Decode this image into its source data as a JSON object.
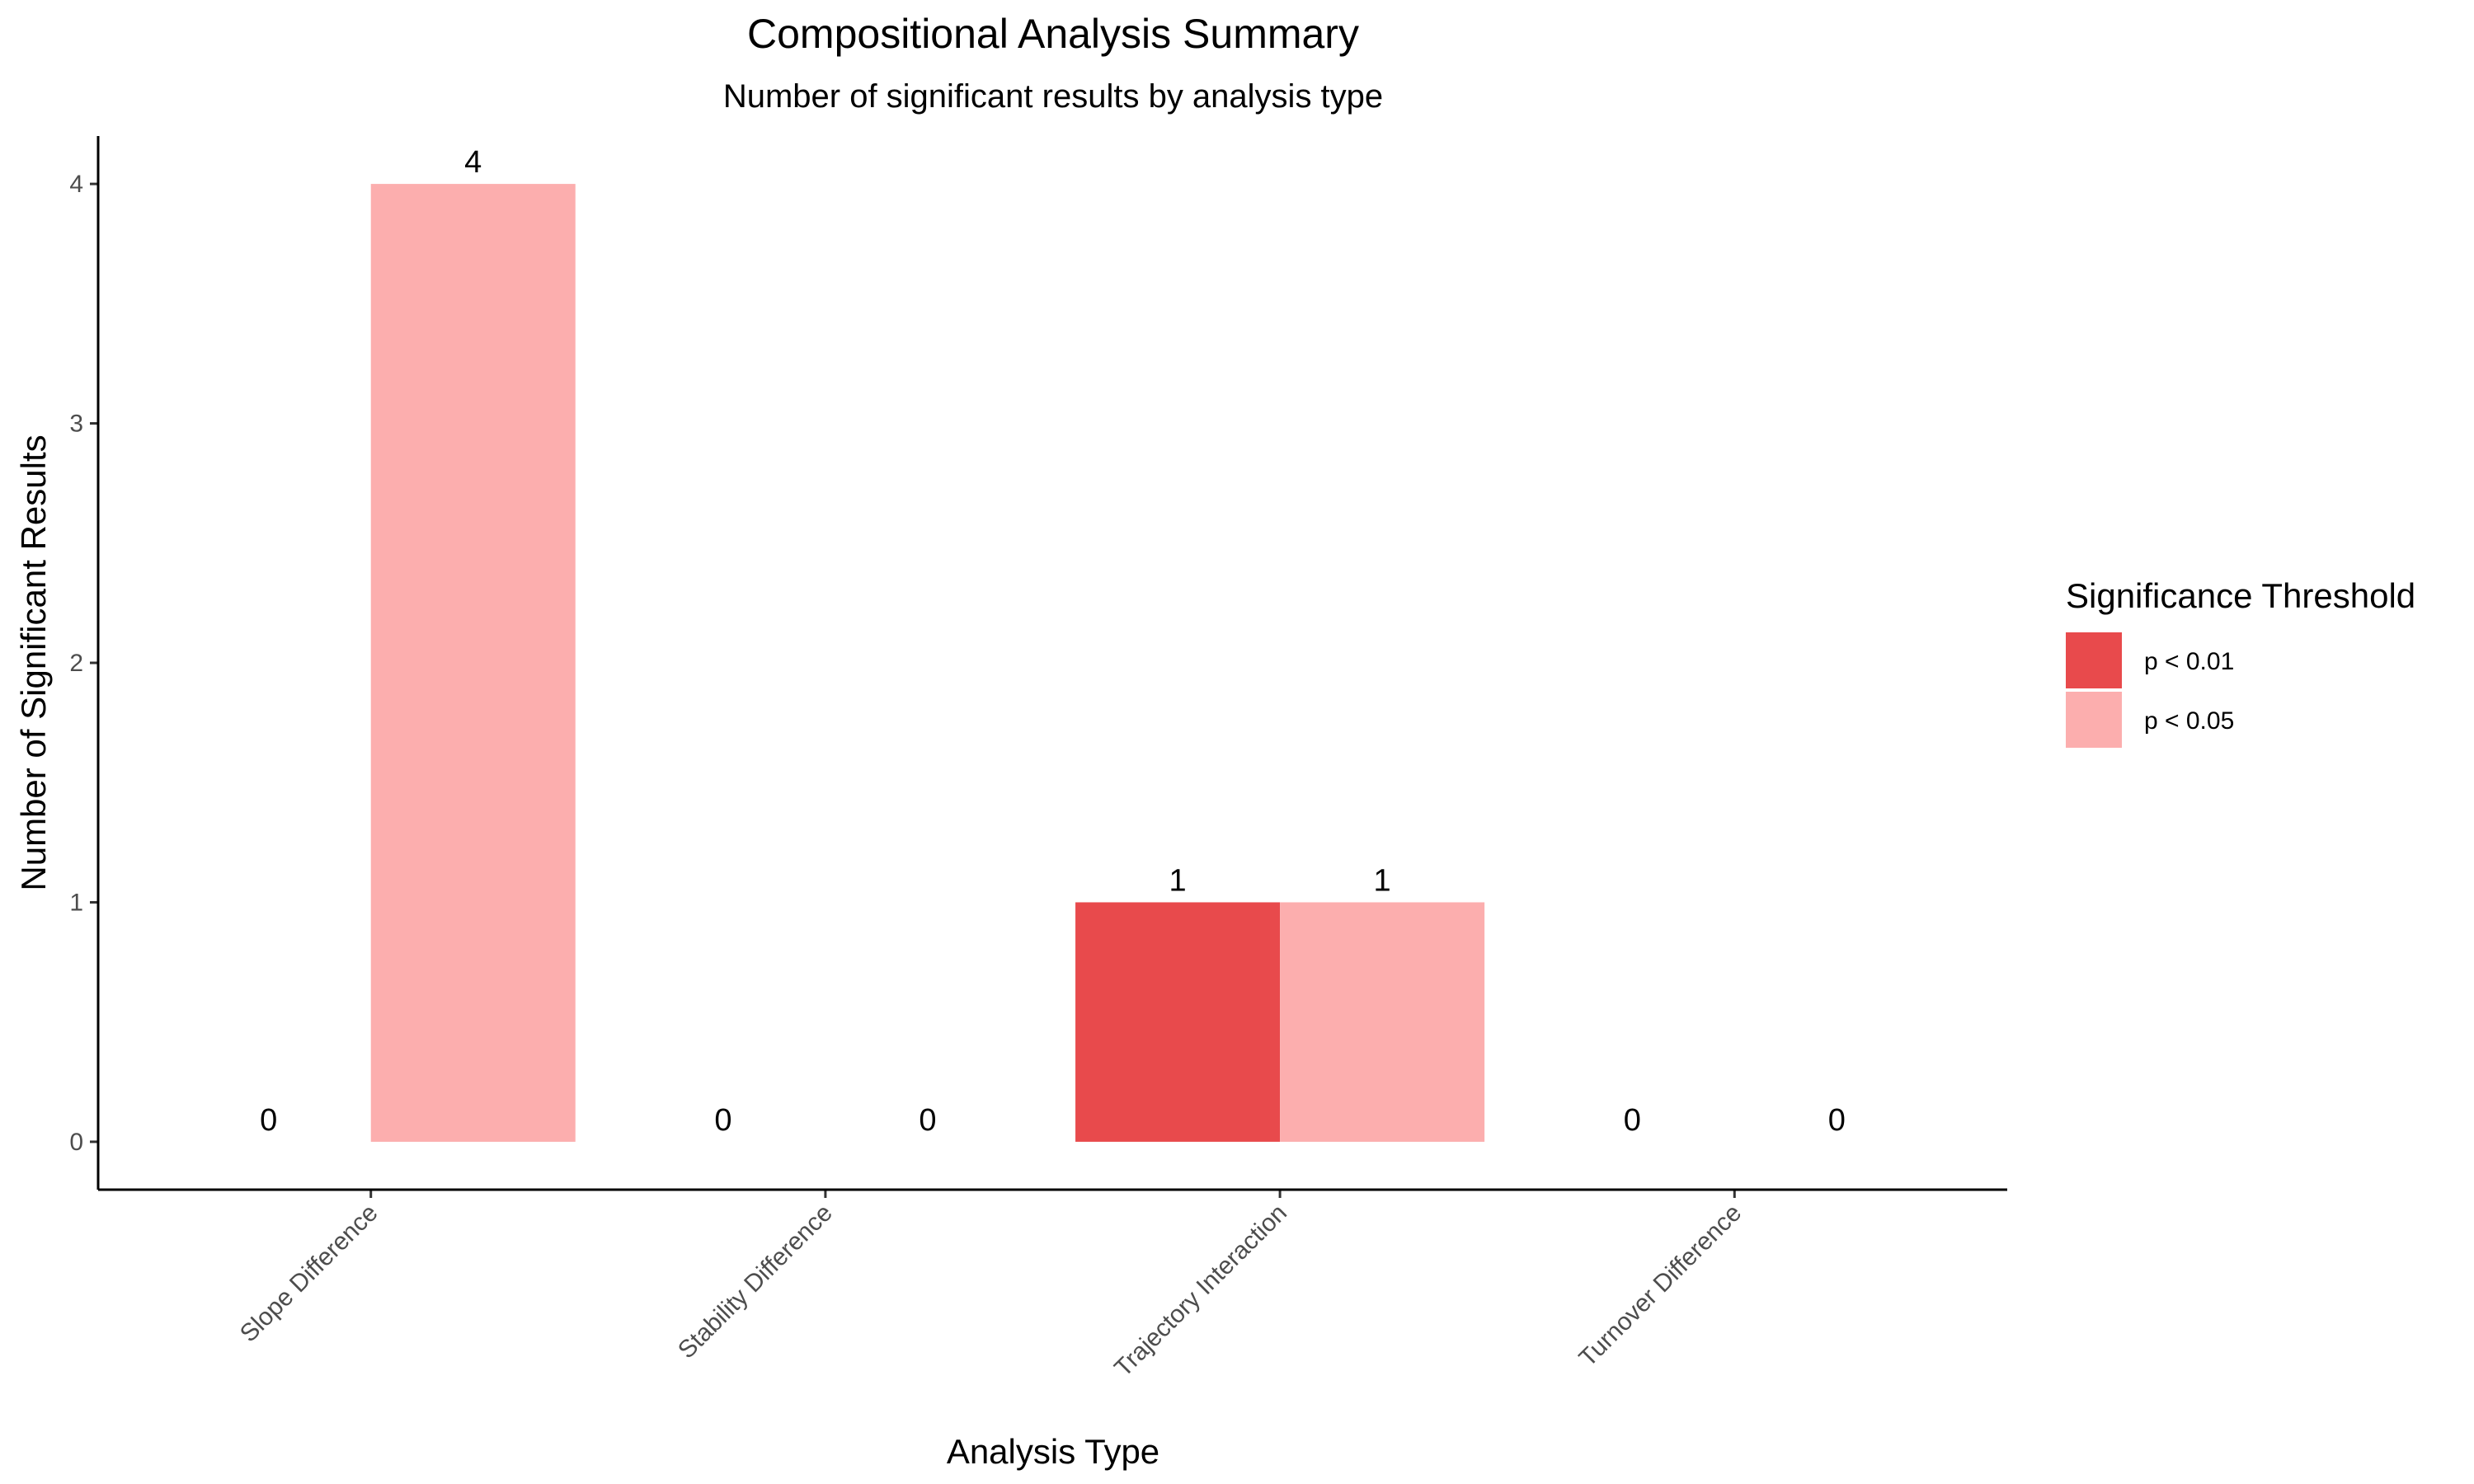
{
  "chart_data": {
    "type": "bar",
    "title": "Compositional Analysis Summary",
    "subtitle": "Number of significant results by analysis type",
    "xlabel": "Analysis Type",
    "ylabel": "Number of Significant Results",
    "categories": [
      "Slope Difference",
      "Stability Difference",
      "Trajectory Interaction",
      "Turnover Difference"
    ],
    "series": [
      {
        "name": "p < 0.01",
        "color": "#e84a4c",
        "values": [
          0,
          0,
          1,
          0
        ]
      },
      {
        "name": "p < 0.05",
        "color": "#fcaeae",
        "values": [
          4,
          0,
          1,
          0
        ]
      }
    ],
    "ylim": [
      -0.2,
      4.2
    ],
    "yticks": [
      0,
      1,
      2,
      3,
      4
    ],
    "legend": {
      "title": "Significance Threshold",
      "position": "right"
    },
    "grid": false,
    "data_labels": true
  }
}
